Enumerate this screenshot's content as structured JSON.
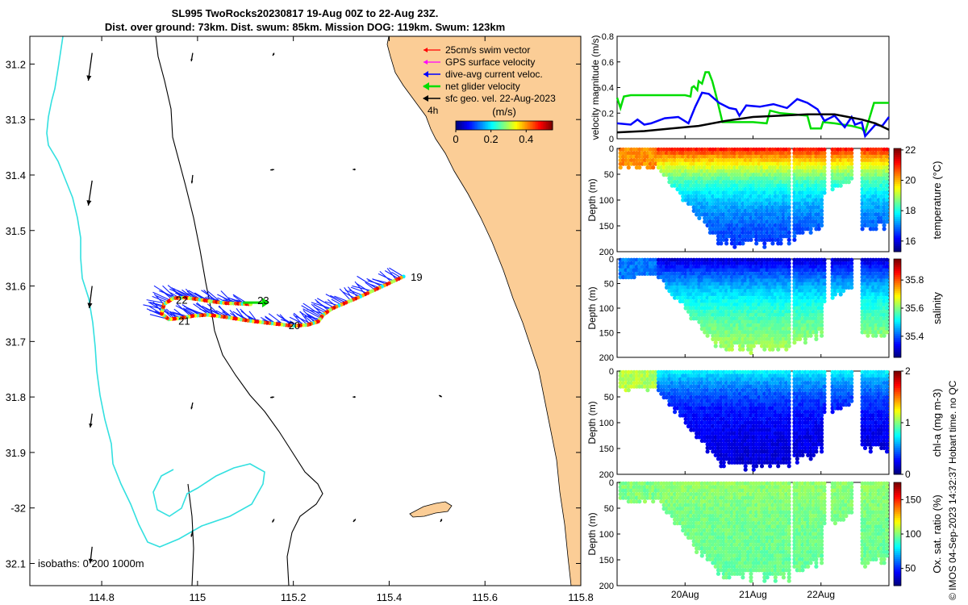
{
  "title": {
    "line1": "SL995 TwoRocks20230817 19-Aug 00Z to 22-Aug 23Z.",
    "line2": "Dist. over ground: 73km. Dist. swum: 85km. Mission DOG: 119km. Swum: 123km"
  },
  "footer": "© IMOS 04-Sep-2023 14:32:37 Hobart time. no QC",
  "colors": {
    "land": "#fbcd96",
    "isobath200": "#000000",
    "isobath1000": "#33e0e0",
    "swim": "#ff0000",
    "gps": "#ff00ff",
    "dac": "#0000ff",
    "net": "#00dd00",
    "geo": "#000000"
  },
  "chart_data": [
    {
      "id": "map",
      "type": "scatter",
      "xlabel": "",
      "ylabel": "",
      "xlim": [
        114.65,
        115.8
      ],
      "ylim": [
        32.14,
        31.15
      ],
      "xticks": [
        114.8,
        115,
        115.2,
        115.4,
        115.6,
        115.8
      ],
      "xticklabels": [
        "114.8",
        "115",
        "115.2",
        "115.4",
        "115.6",
        "115.8"
      ],
      "yticks": [
        31.2,
        31.3,
        31.4,
        31.5,
        31.6,
        31.7,
        31.8,
        31.9,
        32.0,
        32.1
      ],
      "yticklabels": [
        "31.2",
        "31.3",
        "31.4",
        "31.5",
        "31.6",
        "31.7",
        "31.8",
        "31.9",
        "-32",
        "32.1"
      ],
      "legend": {
        "position": "top-right",
        "items": [
          {
            "label": "25cm/s swim vector",
            "color": "#ff0000"
          },
          {
            "label": "GPS surface velocity",
            "color": "#ff00ff"
          },
          {
            "label": "dive-avg current veloc.",
            "color": "#0000ff"
          },
          {
            "label": "net glider velocity",
            "color": "#00dd00"
          },
          {
            "label": "sfc geo. vel. 22-Aug-2023",
            "color": "#000000"
          }
        ],
        "scale_label": "4h"
      },
      "colorbar": {
        "label": "(m/s)",
        "ticks": [
          0,
          0.2,
          0.4
        ],
        "ticklabels": [
          "0",
          "0.2",
          "0.4"
        ],
        "range": [
          0,
          0.55
        ]
      },
      "isobath_label": "isobaths: 0   200  1000m",
      "day_labels": [
        {
          "text": "19",
          "lon": 115.445,
          "lat": 31.585
        },
        {
          "text": "20",
          "lon": 115.19,
          "lat": 31.672
        },
        {
          "text": "21",
          "lon": 114.96,
          "lat": 31.664
        },
        {
          "text": "22",
          "lon": 114.955,
          "lat": 31.626
        },
        {
          "text": "23",
          "lon": 115.125,
          "lat": 31.627
        }
      ],
      "track": [
        [
          115.43,
          31.583
        ],
        [
          115.4,
          31.595
        ],
        [
          115.37,
          31.607
        ],
        [
          115.34,
          31.619
        ],
        [
          115.31,
          31.63
        ],
        [
          115.28,
          31.641
        ],
        [
          115.262,
          31.652
        ],
        [
          115.252,
          31.664
        ],
        [
          115.23,
          31.67
        ],
        [
          115.2,
          31.672
        ],
        [
          115.17,
          31.669
        ],
        [
          115.14,
          31.666
        ],
        [
          115.11,
          31.663
        ],
        [
          115.08,
          31.659
        ],
        [
          115.05,
          31.655
        ],
        [
          115.02,
          31.652
        ],
        [
          114.99,
          31.654
        ],
        [
          114.965,
          31.658
        ],
        [
          114.94,
          31.66
        ],
        [
          114.925,
          31.65
        ],
        [
          114.93,
          31.633
        ],
        [
          114.95,
          31.622
        ],
        [
          114.975,
          31.621
        ],
        [
          115.0,
          31.624
        ],
        [
          115.03,
          31.628
        ],
        [
          115.06,
          31.631
        ],
        [
          115.09,
          31.632
        ],
        [
          115.115,
          31.633
        ]
      ],
      "geo_vectors": [
        {
          "lon": 114.78,
          "lat": 31.18,
          "u": -0.008,
          "v": -0.05
        },
        {
          "lon": 114.78,
          "lat": 31.41,
          "u": -0.008,
          "v": -0.045
        },
        {
          "lon": 114.78,
          "lat": 31.6,
          "u": -0.006,
          "v": -0.04
        },
        {
          "lon": 114.78,
          "lat": 31.83,
          "u": -0.004,
          "v": -0.025
        },
        {
          "lon": 114.78,
          "lat": 32.07,
          "u": -0.004,
          "v": -0.03
        },
        {
          "lon": 114.99,
          "lat": 31.18,
          "u": -0.003,
          "v": -0.015
        },
        {
          "lon": 114.99,
          "lat": 31.4,
          "u": -0.002,
          "v": -0.015
        },
        {
          "lon": 114.99,
          "lat": 31.81,
          "u": -0.003,
          "v": -0.012
        },
        {
          "lon": 114.99,
          "lat": 32.04,
          "u": -0.003,
          "v": -0.012
        },
        {
          "lon": 115.16,
          "lat": 31.18,
          "u": -0.003,
          "v": -0.005
        },
        {
          "lon": 115.16,
          "lat": 31.39,
          "u": -0.008,
          "v": -0.001
        },
        {
          "lon": 115.16,
          "lat": 31.8,
          "u": -0.008,
          "v": -0.001
        },
        {
          "lon": 115.16,
          "lat": 32.02,
          "u": -0.004,
          "v": -0.006
        },
        {
          "lon": 115.33,
          "lat": 31.39,
          "u": -0.006,
          "v": 0.0
        },
        {
          "lon": 115.33,
          "lat": 31.8,
          "u": -0.006,
          "v": 0.0
        },
        {
          "lon": 115.33,
          "lat": 32.02,
          "u": -0.005,
          "v": -0.005
        },
        {
          "lon": 115.51,
          "lat": 31.8,
          "u": -0.006,
          "v": 0.003
        },
        {
          "lon": 115.51,
          "lat": 32.02,
          "u": -0.003,
          "v": -0.005
        }
      ]
    },
    {
      "id": "velocity",
      "type": "line",
      "xlabel": "",
      "ylabel": "velocity magnitude (m/s)",
      "xlim": [
        0,
        4
      ],
      "ylim": [
        0,
        0.8
      ],
      "yticks": [
        0,
        0.2,
        0.4,
        0.6,
        0.8
      ],
      "series": [
        {
          "name": "net glider velocity",
          "color": "#00dd00",
          "x": [
            0,
            0.05,
            0.1,
            0.2,
            0.8,
            1.0,
            1.08,
            1.1,
            1.13,
            1.18,
            1.2,
            1.25,
            1.3,
            1.35,
            1.4,
            1.45,
            1.55,
            2.0,
            2.2,
            2.25,
            2.4,
            2.6,
            2.8,
            2.85,
            3.0,
            3.03,
            3.2,
            3.45,
            3.6,
            3.65,
            3.78,
            3.82,
            4.0
          ],
          "y": [
            0.32,
            0.24,
            0.33,
            0.34,
            0.34,
            0.34,
            0.33,
            0.4,
            0.41,
            0.38,
            0.45,
            0.43,
            0.52,
            0.52,
            0.45,
            0.35,
            0.13,
            0.13,
            0.12,
            0.22,
            0.2,
            0.19,
            0.18,
            0.08,
            0.08,
            0.13,
            0.12,
            0.1,
            0.08,
            0.05,
            0.28,
            0.28,
            0.28
          ]
        },
        {
          "name": "dive-avg current veloc.",
          "color": "#0000ff",
          "x": [
            0,
            0.2,
            0.3,
            0.4,
            0.5,
            0.7,
            0.9,
            1.05,
            1.15,
            1.25,
            1.35,
            1.5,
            1.65,
            1.75,
            1.8,
            1.9,
            2.1,
            2.3,
            2.5,
            2.65,
            2.8,
            2.95,
            3.05,
            3.2,
            3.35,
            3.45,
            3.5,
            3.6,
            3.65,
            3.8,
            3.9,
            4.0
          ],
          "y": [
            0.12,
            0.11,
            0.15,
            0.11,
            0.12,
            0.16,
            0.17,
            0.12,
            0.25,
            0.36,
            0.35,
            0.28,
            0.24,
            0.23,
            0.18,
            0.26,
            0.25,
            0.27,
            0.24,
            0.31,
            0.28,
            0.23,
            0.14,
            0.18,
            0.09,
            0.17,
            0.11,
            0.13,
            0.02,
            0.11,
            0.1,
            0.17
          ]
        },
        {
          "name": "sfc geo. vel.",
          "color": "#000000",
          "x": [
            0,
            0.4,
            0.8,
            1.2,
            1.6,
            2.0,
            2.4,
            2.8,
            3.2,
            3.4,
            3.6,
            3.8,
            4.0
          ],
          "y": [
            0.05,
            0.06,
            0.08,
            0.1,
            0.14,
            0.17,
            0.18,
            0.19,
            0.19,
            0.17,
            0.15,
            0.12,
            0.07
          ]
        }
      ]
    },
    {
      "id": "temperature",
      "type": "scatter",
      "ylabel": "Depth (m)",
      "clabel": "temperature (°C)",
      "ylim": [
        0,
        200
      ],
      "yticks": [
        0,
        50,
        100,
        150,
        200
      ],
      "clim": [
        15.3,
        22.1
      ],
      "cticks": [
        16,
        18,
        20,
        22
      ],
      "surface": 21.2,
      "bottom": 16.0,
      "shallow_value": 20.3,
      "decay": 80
    },
    {
      "id": "salinity",
      "type": "scatter",
      "ylabel": "Depth (m)",
      "clabel": "salinity",
      "ylim": [
        0,
        200
      ],
      "yticks": [
        0,
        50,
        100,
        150,
        200
      ],
      "clim": [
        35.25,
        35.95
      ],
      "cticks": [
        35.4,
        35.6,
        35.8
      ],
      "surface": 35.3,
      "bottom": 35.7,
      "shallow_value": 35.42,
      "decay": 110
    },
    {
      "id": "chla",
      "type": "scatter",
      "ylabel": "Depth (m)",
      "clabel": "chl-a (mg m-3)",
      "ylim": [
        0,
        200
      ],
      "yticks": [
        0,
        50,
        100,
        150,
        200
      ],
      "clim": [
        0,
        2
      ],
      "cticks": [
        0,
        1,
        2
      ],
      "surface": 0.75,
      "bottom": 0.15,
      "shallow_value": 1.1,
      "decay": 55
    },
    {
      "id": "oxygen",
      "type": "scatter",
      "ylabel": "Depth (m)",
      "clabel": "Ox. sat. ratio (%)",
      "ylim": [
        0,
        200
      ],
      "yticks": [
        0,
        50,
        100,
        150,
        200
      ],
      "clim": [
        25,
        175
      ],
      "cticks": [
        50,
        100,
        150
      ],
      "surface": 103,
      "bottom": 95,
      "shallow_value": 100,
      "decay": 100
    }
  ],
  "time_axis": {
    "xlim": [
      0,
      4
    ],
    "ticks": [
      1,
      2,
      3
    ],
    "ticklabels": [
      "20Aug",
      "21Aug",
      "22Aug"
    ]
  }
}
